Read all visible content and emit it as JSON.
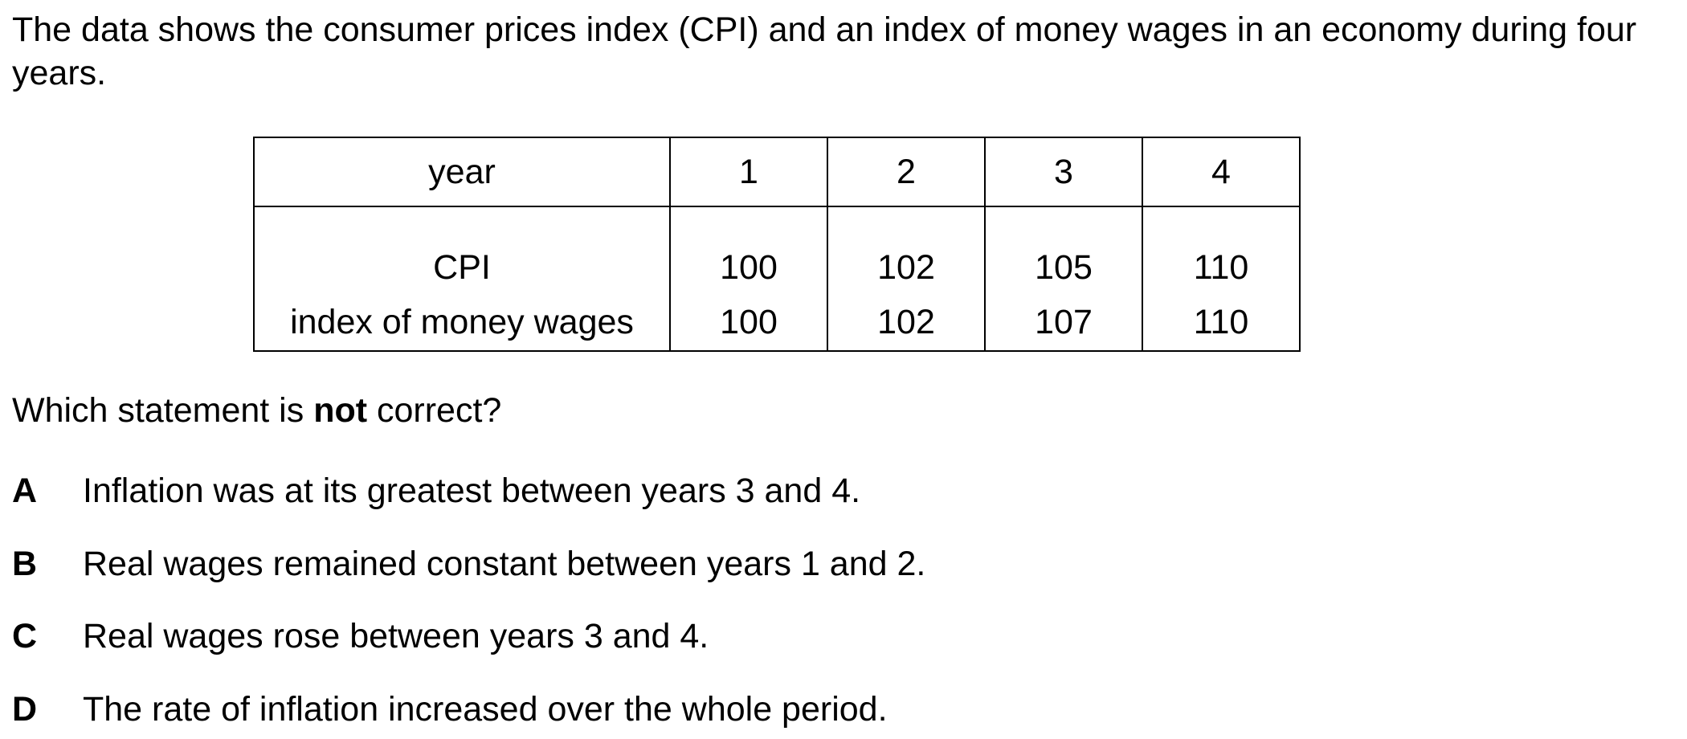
{
  "intro": "The data shows the consumer prices index (CPI) and an index of money wages in an economy during four years.",
  "table": {
    "header": [
      "year",
      "1",
      "2",
      "3",
      "4"
    ],
    "rows": [
      [
        "CPI",
        "100",
        "102",
        "105",
        "110"
      ],
      [
        "index of money wages",
        "100",
        "102",
        "107",
        "110"
      ]
    ]
  },
  "question": {
    "prefix": "Which statement is ",
    "emphasis": "not",
    "suffix": " correct?"
  },
  "options": [
    {
      "letter": "A",
      "text": "Inflation was at its greatest between years 3 and 4."
    },
    {
      "letter": "B",
      "text": "Real wages remained constant between years 1 and 2."
    },
    {
      "letter": "C",
      "text": "Real wages rose between years 3 and 4."
    },
    {
      "letter": "D",
      "text": "The rate of inflation increased over the whole period."
    }
  ]
}
